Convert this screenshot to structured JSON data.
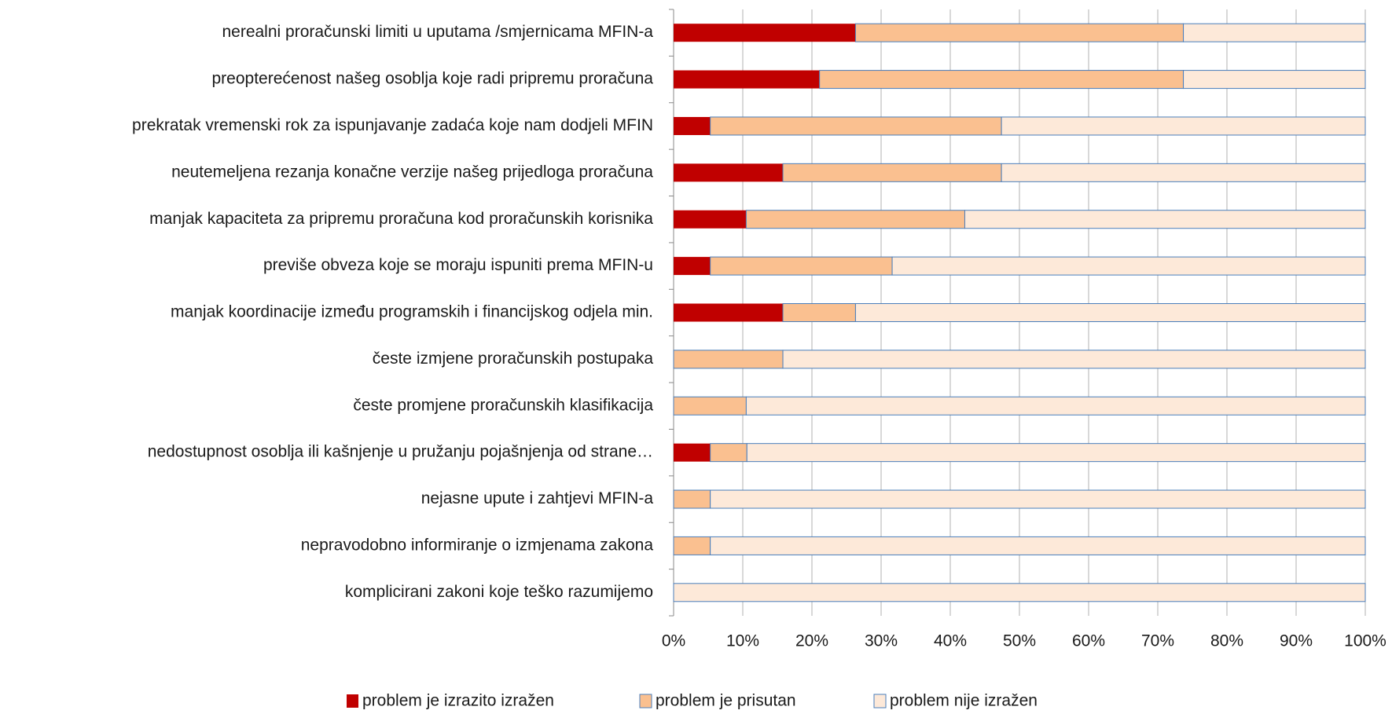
{
  "chart_data": {
    "type": "stacked_bar_horizontal",
    "categories": [
      "nerealni proračunski limiti u uputama /smjernicama MFIN-a",
      "preopterećenost našeg osoblja koje radi pripremu proračuna",
      "prekratak vremenski rok za ispunjavanje zadaća koje nam dodjeli MFIN",
      "neutemeljena rezanja konačne verzije našeg prijedloga proračuna",
      "manjak kapaciteta za pripremu proračuna kod proračunskih korisnika",
      "previše obveza koje se moraju ispuniti prema MFIN-u",
      "manjak koordinacije između programskih i financijskog odjela  min.",
      "česte izmjene proračunskih postupaka",
      "česte promjene proračunskih klasifikacija",
      "nedostupnost osoblja ili kašnjenje u pružanju pojašnjenja od strane…",
      "nejasne upute i zahtjevi MFIN-a",
      "nepravodobno informiranje  o izmjenama zakona",
      "komplicirani zakoni koje teško razumijemo"
    ],
    "series": [
      {
        "name": "problem je izrazito izražen",
        "color": "#c00000",
        "values": [
          26.3,
          21.1,
          5.3,
          15.8,
          10.5,
          5.3,
          15.8,
          0,
          0,
          5.3,
          0,
          0,
          0
        ]
      },
      {
        "name": "problem je prisutan",
        "color": "#fac090",
        "values": [
          47.4,
          52.6,
          42.1,
          31.6,
          31.6,
          26.3,
          10.5,
          15.8,
          10.5,
          5.3,
          5.3,
          5.3,
          0
        ]
      },
      {
        "name": "problem nije izražen",
        "color": "#fde9d9",
        "values": [
          26.3,
          26.3,
          52.6,
          52.6,
          57.9,
          68.4,
          73.7,
          84.2,
          89.5,
          89.4,
          94.7,
          94.7,
          100
        ]
      }
    ],
    "xlim": [
      0,
      100
    ],
    "xticks": [
      {
        "value": 0,
        "label": "0%"
      },
      {
        "value": 10,
        "label": "10%"
      },
      {
        "value": 20,
        "label": "20%"
      },
      {
        "value": 30,
        "label": "30%"
      },
      {
        "value": 40,
        "label": "40%"
      },
      {
        "value": 50,
        "label": "50%"
      },
      {
        "value": 60,
        "label": "60%"
      },
      {
        "value": 70,
        "label": "70%"
      },
      {
        "value": 80,
        "label": "80%"
      },
      {
        "value": 90,
        "label": "90%"
      },
      {
        "value": 100,
        "label": "100%"
      }
    ],
    "grid": true,
    "legend": "bottom"
  }
}
